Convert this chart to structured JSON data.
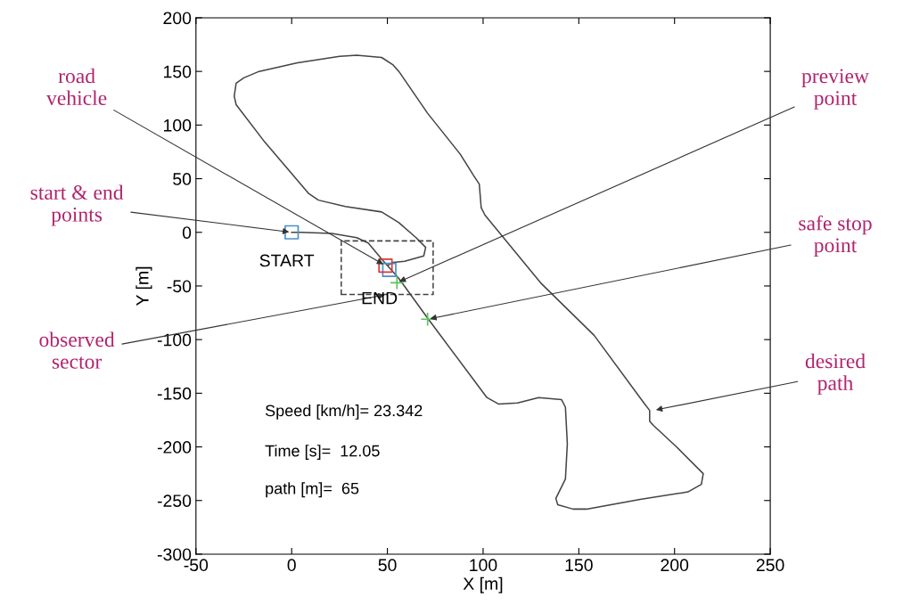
{
  "chart_data": {
    "type": "line",
    "xlabel": "X [m]",
    "ylabel": "Y [m]",
    "xlim": [
      -50,
      250
    ],
    "xticks": [
      -50,
      0,
      50,
      100,
      150,
      200,
      250
    ],
    "ylim": [
      -300,
      200
    ],
    "yticks": [
      -300,
      -250,
      -200,
      -150,
      -100,
      -50,
      0,
      50,
      100,
      150,
      200
    ],
    "grid": false,
    "legend": false,
    "series": [
      {
        "color": "#444444",
        "line_style": "solid",
        "marker": "none",
        "x": [
          0,
          5,
          21,
          34,
          40,
          48,
          50,
          56,
          71,
          102,
          108,
          118,
          129,
          141,
          143,
          144,
          143,
          138,
          139,
          147,
          154,
          182,
          207,
          214,
          215,
          201,
          189,
          187,
          187,
          184,
          158,
          130,
          101,
          99,
          98,
          95,
          88,
          71,
          56,
          53,
          47,
          34,
          25,
          3,
          -17,
          -25,
          -29,
          -30,
          -29,
          -14,
          9,
          14,
          28,
          47,
          56,
          65,
          70,
          69,
          59,
          53,
          50
        ],
        "values": [
          0,
          0,
          -1,
          -5,
          -10,
          -27,
          -31,
          -43,
          -80,
          -154,
          -160,
          -159,
          -154,
          -156,
          -163,
          -197,
          -230,
          -248,
          -254,
          -258,
          -258,
          -249,
          -242,
          -235,
          -225,
          -200,
          -180,
          -176,
          -166,
          -159,
          -96,
          -47,
          16,
          23,
          45,
          53,
          73,
          111,
          150,
          156,
          163,
          165,
          164,
          158,
          150,
          144,
          139,
          127,
          119,
          84,
          36,
          30,
          24,
          19,
          9,
          -5,
          -14,
          -22,
          -27,
          -28,
          -31
        ]
      },
      {
        "type": "scatter",
        "color": "#4a8fc8",
        "marker": "square",
        "x": [
          0,
          51
        ],
        "values": [
          0,
          -35
        ]
      },
      {
        "type": "scatter",
        "color": "#d9383a",
        "marker": "square",
        "x": [
          49
        ],
        "values": [
          -31
        ]
      },
      {
        "type": "scatter",
        "color": "#5cc45c",
        "marker": "cross",
        "x": [
          55,
          71
        ],
        "values": [
          -47,
          -81
        ]
      }
    ],
    "annotations": [
      {
        "text": "road vehicle",
        "x": 49,
        "y": -31
      },
      {
        "text": "start & end points",
        "x": 0,
        "y": 0
      },
      "observed sector",
      {
        "text": "preview point",
        "x": 55,
        "y": -47
      },
      {
        "text": "safe stop point",
        "x": 71,
        "y": -81
      },
      {
        "text": "desired path",
        "x": 189,
        "y": -166
      },
      {
        "text": "START",
        "x": 0,
        "y": 0
      },
      {
        "text": "END",
        "x": 51,
        "y": -35
      },
      "Speed [km/h]= 23.342",
      "Time [s]=  12.05",
      "path [m]=  65"
    ]
  }
}
